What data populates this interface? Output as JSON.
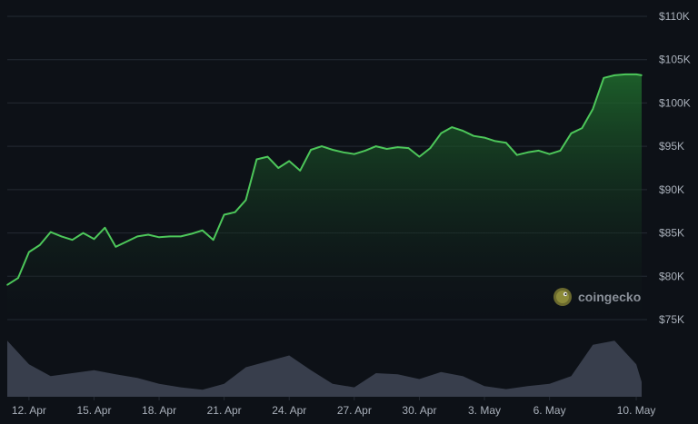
{
  "colors": {
    "background": "#0d1117",
    "price_line": "#4dc75a",
    "price_fill_top": "#1f6b2d",
    "volume_fill": "#3d4452",
    "grid": "#242a33",
    "axis_text": "#a9b0ba"
  },
  "watermark": {
    "brand": "coingecko",
    "icon": "gecko-icon"
  },
  "chart_data": [
    {
      "type": "area",
      "title": "",
      "xlabel": "",
      "ylabel": "",
      "ylim": [
        75000,
        110000
      ],
      "grid": true,
      "y_axis_position": "right",
      "y_ticks": [
        75000,
        80000,
        85000,
        90000,
        95000,
        100000,
        105000,
        110000
      ],
      "y_tick_labels": [
        "$75K",
        "$80K",
        "$85K",
        "$90K",
        "$95K",
        "$100K",
        "$105K",
        "$110K"
      ],
      "x_range": [
        "2025-04-11",
        "2025-05-10"
      ],
      "x_ticks": [
        "2025-04-12",
        "2025-04-15",
        "2025-04-18",
        "2025-04-21",
        "2025-04-24",
        "2025-04-27",
        "2025-04-30",
        "2025-05-03",
        "2025-05-06",
        "2025-05-10"
      ],
      "x_tick_labels": [
        "12. Apr",
        "15. Apr",
        "18. Apr",
        "21. Apr",
        "24. Apr",
        "27. Apr",
        "30. Apr",
        "3. May",
        "6. May",
        "10. May"
      ],
      "series": [
        {
          "x": [
            "2025-04-11T00:00",
            "2025-04-11T12:00",
            "2025-04-12T00:00",
            "2025-04-12T12:00",
            "2025-04-13T00:00",
            "2025-04-13T12:00",
            "2025-04-14T00:00",
            "2025-04-14T12:00",
            "2025-04-15T00:00",
            "2025-04-15T12:00",
            "2025-04-16T00:00",
            "2025-04-16T12:00",
            "2025-04-17T00:00",
            "2025-04-17T12:00",
            "2025-04-18T00:00",
            "2025-04-18T12:00",
            "2025-04-19T00:00",
            "2025-04-19T12:00",
            "2025-04-20T00:00",
            "2025-04-20T12:00",
            "2025-04-21T00:00",
            "2025-04-21T12:00",
            "2025-04-22T00:00",
            "2025-04-22T12:00",
            "2025-04-23T00:00",
            "2025-04-23T12:00",
            "2025-04-24T00:00",
            "2025-04-24T12:00",
            "2025-04-25T00:00",
            "2025-04-25T12:00",
            "2025-04-26T00:00",
            "2025-04-26T12:00",
            "2025-04-27T00:00",
            "2025-04-27T12:00",
            "2025-04-28T00:00",
            "2025-04-28T12:00",
            "2025-04-29T00:00",
            "2025-04-29T12:00",
            "2025-04-30T00:00",
            "2025-04-30T12:00",
            "2025-05-01T00:00",
            "2025-05-01T12:00",
            "2025-05-02T00:00",
            "2025-05-02T12:00",
            "2025-05-03T00:00",
            "2025-05-03T12:00",
            "2025-05-04T00:00",
            "2025-05-04T12:00",
            "2025-05-05T00:00",
            "2025-05-05T12:00",
            "2025-05-06T00:00",
            "2025-05-06T12:00",
            "2025-05-07T00:00",
            "2025-05-07T12:00",
            "2025-05-08T00:00",
            "2025-05-08T12:00",
            "2025-05-09T00:00",
            "2025-05-09T12:00",
            "2025-05-10T00:00",
            "2025-05-10T06:00"
          ],
          "values": [
            79000,
            79800,
            82800,
            83600,
            85100,
            84600,
            84200,
            85000,
            84300,
            85600,
            83400,
            84000,
            84600,
            84800,
            84500,
            84600,
            84600,
            84900,
            85300,
            84200,
            87100,
            87400,
            88800,
            93500,
            93800,
            92500,
            93300,
            92200,
            94600,
            95000,
            94600,
            94300,
            94100,
            94500,
            95000,
            94700,
            94900,
            94800,
            93800,
            94800,
            96500,
            97200,
            96800,
            96200,
            96000,
            95600,
            95400,
            94000,
            94300,
            94500,
            94100,
            94500,
            96500,
            97100,
            99300,
            102900,
            103200,
            103300,
            103300,
            103200
          ]
        }
      ]
    },
    {
      "type": "area",
      "title": "",
      "xlabel": "",
      "ylabel": "",
      "grid": false,
      "note_series": "volume (unlabeled, no axis)",
      "series": [
        {
          "x": [
            "2025-04-11T00:00",
            "2025-04-12T00:00",
            "2025-04-13T00:00",
            "2025-04-14T00:00",
            "2025-04-15T00:00",
            "2025-04-16T00:00",
            "2025-04-17T00:00",
            "2025-04-18T00:00",
            "2025-04-19T00:00",
            "2025-04-20T00:00",
            "2025-04-21T00:00",
            "2025-04-22T00:00",
            "2025-04-23T00:00",
            "2025-04-24T00:00",
            "2025-04-25T00:00",
            "2025-04-26T00:00",
            "2025-04-27T00:00",
            "2025-04-28T00:00",
            "2025-04-29T00:00",
            "2025-04-30T00:00",
            "2025-05-01T00:00",
            "2025-05-02T00:00",
            "2025-05-03T00:00",
            "2025-05-04T00:00",
            "2025-05-05T00:00",
            "2025-05-06T00:00",
            "2025-05-07T00:00",
            "2025-05-08T00:00",
            "2025-05-09T00:00",
            "2025-05-10T00:00",
            "2025-05-10T06:00"
          ],
          "values": [
            0.95,
            0.55,
            0.35,
            0.4,
            0.45,
            0.38,
            0.32,
            0.22,
            0.16,
            0.12,
            0.22,
            0.5,
            0.6,
            0.7,
            0.45,
            0.22,
            0.16,
            0.4,
            0.38,
            0.3,
            0.42,
            0.35,
            0.18,
            0.13,
            0.18,
            0.22,
            0.35,
            0.88,
            0.95,
            0.55,
            0.25
          ]
        }
      ]
    }
  ]
}
